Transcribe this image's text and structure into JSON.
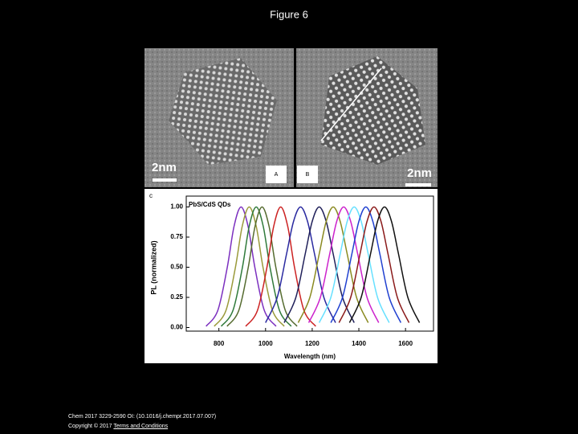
{
  "header": {
    "title": "Figure 6"
  },
  "panels": {
    "a_label": "A",
    "b_label": "B",
    "a_scale": "2nm",
    "b_scale": "2nm",
    "c_label": "c"
  },
  "chart_data": {
    "type": "line",
    "annotation": "PbS/CdS QDs",
    "x_label": "Wavelength (nm)",
    "y_label": "PL (normalized)",
    "xlim": [
      660,
      1720
    ],
    "ylim": [
      -0.03,
      1.09
    ],
    "xticks": [
      800,
      1000,
      1200,
      1400,
      1600
    ],
    "yticks": [
      {
        "value": 0,
        "label": "0.00"
      },
      {
        "value": 0.25,
        "label": "0.25"
      },
      {
        "value": 0.5,
        "label": "0.50"
      },
      {
        "value": 0.75,
        "label": "0.75"
      },
      {
        "value": 1,
        "label": "1.00"
      }
    ],
    "series": [
      {
        "color": "#7b2fbf",
        "x": [
          745,
          795,
          835,
          865,
          895,
          925,
          955,
          995,
          1045
        ],
        "values": [
          0.01,
          0.14,
          0.49,
          0.84,
          1,
          0.84,
          0.49,
          0.14,
          0.01
        ]
      },
      {
        "color": "#9a9a3a",
        "x": [
          780,
          830,
          870,
          900,
          930,
          960,
          990,
          1030,
          1080
        ],
        "values": [
          0.01,
          0.14,
          0.49,
          0.84,
          1,
          0.84,
          0.49,
          0.14,
          0.01
        ]
      },
      {
        "color": "#2f7a3a",
        "x": [
          810,
          860,
          900,
          930,
          960,
          990,
          1020,
          1060,
          1110
        ],
        "values": [
          0.01,
          0.14,
          0.49,
          0.84,
          1,
          0.84,
          0.49,
          0.14,
          0.01
        ]
      },
      {
        "color": "#556b2f",
        "x": [
          835,
          885,
          925,
          955,
          985,
          1015,
          1045,
          1085,
          1135
        ],
        "values": [
          0.01,
          0.14,
          0.49,
          0.84,
          1,
          0.84,
          0.49,
          0.14,
          0.01
        ]
      },
      {
        "color": "#cc2222",
        "x": [
          915,
          965,
          1005,
          1035,
          1065,
          1095,
          1125,
          1165,
          1215
        ],
        "values": [
          0.01,
          0.14,
          0.49,
          0.84,
          1,
          0.84,
          0.49,
          0.14,
          0.01
        ]
      },
      {
        "color": "#2a2aa0",
        "x": [
          1000,
          1050,
          1090,
          1120,
          1150,
          1180,
          1210,
          1250,
          1300
        ],
        "values": [
          0.04,
          0.25,
          0.61,
          0.88,
          1,
          0.88,
          0.61,
          0.25,
          0.04
        ]
      },
      {
        "color": "#20205a",
        "x": [
          1080,
          1130,
          1170,
          1200,
          1230,
          1260,
          1290,
          1330,
          1380
        ],
        "values": [
          0.04,
          0.25,
          0.61,
          0.88,
          1,
          0.88,
          0.61,
          0.25,
          0.04
        ]
      },
      {
        "color": "#8a8a20",
        "x": [
          1140,
          1190,
          1230,
          1260,
          1290,
          1320,
          1350,
          1390,
          1440
        ],
        "values": [
          0.04,
          0.25,
          0.61,
          0.88,
          1,
          0.88,
          0.61,
          0.25,
          0.04
        ]
      },
      {
        "color": "#cc22cc",
        "x": [
          1185,
          1235,
          1275,
          1305,
          1335,
          1365,
          1395,
          1435,
          1485
        ],
        "values": [
          0.04,
          0.25,
          0.61,
          0.88,
          1,
          0.88,
          0.61,
          0.25,
          0.04
        ]
      },
      {
        "color": "#66e0ff",
        "x": [
          1230,
          1280,
          1320,
          1350,
          1380,
          1410,
          1440,
          1480,
          1530
        ],
        "values": [
          0.04,
          0.25,
          0.61,
          0.88,
          1,
          0.88,
          0.61,
          0.25,
          0.04
        ]
      },
      {
        "color": "#2040d0",
        "x": [
          1280,
          1330,
          1370,
          1400,
          1430,
          1460,
          1490,
          1530,
          1580
        ],
        "values": [
          0.04,
          0.25,
          0.61,
          0.88,
          1,
          0.88,
          0.61,
          0.25,
          0.04
        ]
      },
      {
        "color": "#8b1a1a",
        "x": [
          1315,
          1365,
          1405,
          1435,
          1465,
          1495,
          1525,
          1565,
          1615
        ],
        "values": [
          0.04,
          0.25,
          0.61,
          0.88,
          1,
          0.88,
          0.61,
          0.25,
          0.04
        ]
      },
      {
        "color": "#111111",
        "x": [
          1360,
          1410,
          1450,
          1480,
          1510,
          1540,
          1570,
          1610,
          1660
        ],
        "values": [
          0.04,
          0.25,
          0.61,
          0.88,
          1,
          0.88,
          0.61,
          0.25,
          0.04
        ]
      }
    ]
  },
  "footer": {
    "citation": "Chem 2017 3229-2590 OI: (10.1016/j.chempr.2017.07.007)",
    "copyright": "Copyright © 2017",
    "link": "Terms and Conditions"
  }
}
